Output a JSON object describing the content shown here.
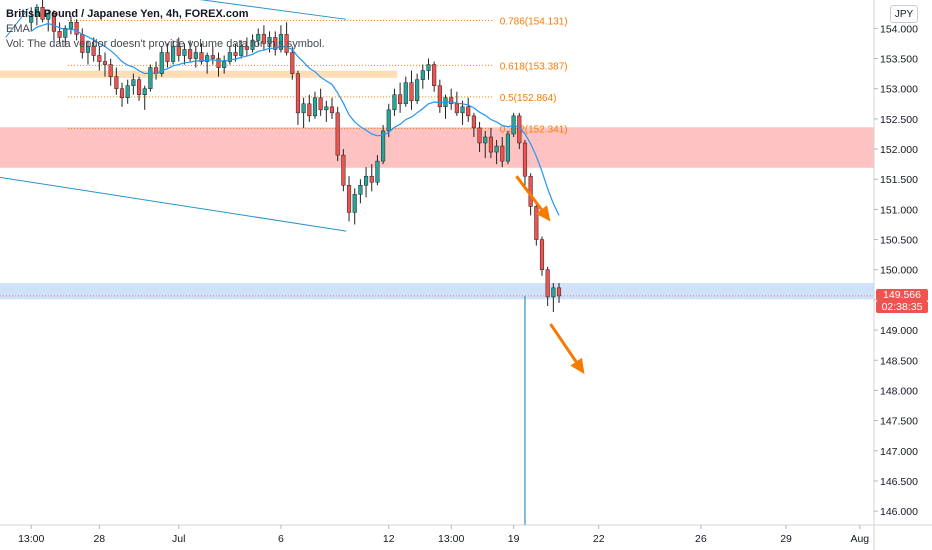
{
  "header": {
    "title": "British Pound / Japanese Yen, 4h, FOREX.com",
    "ema_label": "EMA",
    "vol_note": "Vol: The data vendor doesn't provide volume data for this symbol."
  },
  "currency_button": "JPY",
  "last_price": {
    "value": "149.566",
    "countdown": "02:38:35",
    "color": "#ef5350"
  },
  "colors": {
    "up": "#26a69a",
    "down": "#ef5350",
    "ema": "#2196f3",
    "fib": "#f57c00",
    "red_zone": "#ff9a9a",
    "orange_zone": "#ffd6a5",
    "blue_zone": "#bbd5f7",
    "trendline": "#2a93c9",
    "arrow": "#f57c00"
  },
  "chart_data": {
    "type": "candlestick",
    "title": "British Pound / Japanese Yen, 4h, FOREX.com",
    "y_ticks": [
      146.0,
      146.5,
      147.0,
      147.5,
      148.0,
      148.5,
      149.0,
      149.5,
      150.0,
      150.5,
      151.0,
      151.5,
      152.0,
      152.5,
      153.0,
      153.5,
      154.0
    ],
    "y_tick_labels": [
      "146.000",
      "146.500",
      "147.000",
      "147.500",
      "148.000",
      "148.500",
      "149.000",
      "149.500",
      "150.000",
      "150.500",
      "151.000",
      "151.500",
      "152.000",
      "152.500",
      "153.000",
      "153.500",
      "154.000"
    ],
    "ylim": [
      145.77,
      154.47
    ],
    "x_ticks": [
      {
        "label": "13:00",
        "bar": 0
      },
      {
        "label": "28",
        "bar": 12
      },
      {
        "label": "Jul",
        "bar": 26
      },
      {
        "label": "6",
        "bar": 44
      },
      {
        "label": "12",
        "bar": 63
      },
      {
        "label": "13:00",
        "bar": 74
      },
      {
        "label": "19",
        "bar": 85
      },
      {
        "label": "22",
        "bar": 100
      },
      {
        "label": "26",
        "bar": 118
      },
      {
        "label": "29",
        "bar": 133
      },
      {
        "label": "Aug",
        "bar": 146
      }
    ],
    "bar_range": [
      -5,
      149
    ],
    "fib_levels": [
      {
        "label": "0.786(154.131)",
        "value": 154.131
      },
      {
        "label": "0.618(153.387)",
        "value": 153.387
      },
      {
        "label": "0.5(152.864)",
        "value": 152.864
      },
      {
        "label": "0.382(152.341)",
        "value": 152.341
      }
    ],
    "fib_bar_range": [
      7,
      82
    ],
    "zones": [
      {
        "name": "resistance-red",
        "from": 151.69,
        "to": 152.36,
        "bar_from": -5,
        "bar_to": 149
      },
      {
        "name": "resistance-orange",
        "from": 153.18,
        "to": 153.3,
        "bar_from": -5,
        "bar_to": 65
      },
      {
        "name": "support-blue",
        "from": 149.51,
        "to": 149.78,
        "bar_from": -5,
        "bar_to": 149
      }
    ],
    "trendlines": [
      {
        "from": {
          "bar": 30,
          "value": 154.48
        },
        "to": {
          "bar": 56,
          "value": 154.15
        }
      },
      {
        "from": {
          "bar": -5,
          "value": 151.53
        },
        "to": {
          "bar": 56,
          "value": 150.64
        }
      },
      {
        "from": {
          "bar": -4,
          "value": 153.85
        },
        "to": {
          "bar": 0,
          "value": 154.33
        }
      }
    ],
    "vertical_line": {
      "bar": 87.5,
      "from": 149.566,
      "to": 145.77
    },
    "arrows": [
      {
        "from": {
          "bar": 86,
          "value": 151.55
        },
        "to": {
          "bar": 92,
          "value": 150.8
        }
      },
      {
        "from": {
          "bar": 92,
          "value": 149.1
        },
        "to": {
          "bar": 98,
          "value": 148.27
        }
      }
    ],
    "last_price": 149.566,
    "candles": [
      [
        154.1,
        154.35,
        153.95,
        154.2
      ],
      [
        154.2,
        154.4,
        154.05,
        154.35
      ],
      [
        154.35,
        154.48,
        154.1,
        154.15
      ],
      [
        154.15,
        154.3,
        153.95,
        154.25
      ],
      [
        154.25,
        154.3,
        153.8,
        153.95
      ],
      [
        153.95,
        154.1,
        153.75,
        153.85
      ],
      [
        153.85,
        154.05,
        153.7,
        154.0
      ],
      [
        154.0,
        154.2,
        153.9,
        154.1
      ],
      [
        154.1,
        154.15,
        153.8,
        153.9
      ],
      [
        153.9,
        154.0,
        153.5,
        153.6
      ],
      [
        153.6,
        153.8,
        153.4,
        153.7
      ],
      [
        153.7,
        153.85,
        153.45,
        153.55
      ],
      [
        153.55,
        153.7,
        153.3,
        153.45
      ],
      [
        153.45,
        153.6,
        153.2,
        153.4
      ],
      [
        153.4,
        153.5,
        153.05,
        153.2
      ],
      [
        153.2,
        153.35,
        152.9,
        153.0
      ],
      [
        153.0,
        153.1,
        152.7,
        152.85
      ],
      [
        152.85,
        153.15,
        152.75,
        153.05
      ],
      [
        153.05,
        153.25,
        152.9,
        153.15
      ],
      [
        153.15,
        153.2,
        152.8,
        152.9
      ],
      [
        152.9,
        153.05,
        152.65,
        153.0
      ],
      [
        153.0,
        153.4,
        152.95,
        153.35
      ],
      [
        153.35,
        153.45,
        153.15,
        153.25
      ],
      [
        153.25,
        153.7,
        153.2,
        153.6
      ],
      [
        153.6,
        153.75,
        153.35,
        153.45
      ],
      [
        153.45,
        153.8,
        153.4,
        153.7
      ],
      [
        153.7,
        153.85,
        153.45,
        153.55
      ],
      [
        153.55,
        153.75,
        153.4,
        153.65
      ],
      [
        153.65,
        153.8,
        153.45,
        153.5
      ],
      [
        153.5,
        153.7,
        153.35,
        153.6
      ],
      [
        153.6,
        153.75,
        153.4,
        153.45
      ],
      [
        153.45,
        153.6,
        153.25,
        153.55
      ],
      [
        153.55,
        153.7,
        153.4,
        153.5
      ],
      [
        153.5,
        153.6,
        153.2,
        153.35
      ],
      [
        153.35,
        153.55,
        153.25,
        153.45
      ],
      [
        153.45,
        153.7,
        153.4,
        153.6
      ],
      [
        153.6,
        153.75,
        153.45,
        153.55
      ],
      [
        153.55,
        153.8,
        153.5,
        153.7
      ],
      [
        153.7,
        153.85,
        153.55,
        153.65
      ],
      [
        153.65,
        153.9,
        153.6,
        153.8
      ],
      [
        153.8,
        154.0,
        153.7,
        153.9
      ],
      [
        153.9,
        154.05,
        153.65,
        153.75
      ],
      [
        153.75,
        153.95,
        153.6,
        153.85
      ],
      [
        153.85,
        153.95,
        153.55,
        153.65
      ],
      [
        153.65,
        154.05,
        153.6,
        153.9
      ],
      [
        153.9,
        154.1,
        153.55,
        153.6
      ],
      [
        153.6,
        153.7,
        153.15,
        153.25
      ],
      [
        153.25,
        153.3,
        152.4,
        152.6
      ],
      [
        152.6,
        152.85,
        152.35,
        152.75
      ],
      [
        152.75,
        152.9,
        152.45,
        152.55
      ],
      [
        152.55,
        152.95,
        152.5,
        152.85
      ],
      [
        152.85,
        153.0,
        152.55,
        152.65
      ],
      [
        152.65,
        152.8,
        152.45,
        152.7
      ],
      [
        152.7,
        152.85,
        152.5,
        152.6
      ],
      [
        152.6,
        152.7,
        151.8,
        151.9
      ],
      [
        151.9,
        152.0,
        151.3,
        151.4
      ],
      [
        151.4,
        151.55,
        150.8,
        150.95
      ],
      [
        150.95,
        151.35,
        150.75,
        151.25
      ],
      [
        151.25,
        151.5,
        151.1,
        151.4
      ],
      [
        151.4,
        151.7,
        151.2,
        151.55
      ],
      [
        151.55,
        151.75,
        151.3,
        151.45
      ],
      [
        151.45,
        151.9,
        151.4,
        151.8
      ],
      [
        151.8,
        152.4,
        151.75,
        152.3
      ],
      [
        152.3,
        152.75,
        152.2,
        152.65
      ],
      [
        152.65,
        153.0,
        152.55,
        152.9
      ],
      [
        152.9,
        153.1,
        152.6,
        152.75
      ],
      [
        152.75,
        153.2,
        152.7,
        153.1
      ],
      [
        153.1,
        153.3,
        152.65,
        152.8
      ],
      [
        152.8,
        153.25,
        152.75,
        153.15
      ],
      [
        153.15,
        153.4,
        153.0,
        153.3
      ],
      [
        153.3,
        153.5,
        153.15,
        153.4
      ],
      [
        153.4,
        153.45,
        152.95,
        153.05
      ],
      [
        153.05,
        153.15,
        152.6,
        152.7
      ],
      [
        152.7,
        152.9,
        152.5,
        152.85
      ],
      [
        152.85,
        153.0,
        152.65,
        152.75
      ],
      [
        152.75,
        152.95,
        152.55,
        152.6
      ],
      [
        152.6,
        152.8,
        152.4,
        152.7
      ],
      [
        152.7,
        152.85,
        152.45,
        152.55
      ],
      [
        152.55,
        152.6,
        152.2,
        152.35
      ],
      [
        152.35,
        152.45,
        151.95,
        152.1
      ],
      [
        152.1,
        152.3,
        151.85,
        152.2
      ],
      [
        152.2,
        152.35,
        151.85,
        151.95
      ],
      [
        151.95,
        152.15,
        151.75,
        152.05
      ],
      [
        152.05,
        152.2,
        151.7,
        151.8
      ],
      [
        151.8,
        152.3,
        151.75,
        152.25
      ],
      [
        152.25,
        152.6,
        152.2,
        152.55
      ],
      [
        152.55,
        152.6,
        152.0,
        152.1
      ],
      [
        152.1,
        152.15,
        151.4,
        151.55
      ],
      [
        151.55,
        151.6,
        150.9,
        151.05
      ],
      [
        151.05,
        151.1,
        150.4,
        150.5
      ],
      [
        150.5,
        150.55,
        149.9,
        150.0
      ],
      [
        150.0,
        150.05,
        149.4,
        149.55
      ],
      [
        149.55,
        149.78,
        149.3,
        149.7
      ],
      [
        149.7,
        149.78,
        149.45,
        149.566
      ]
    ],
    "ema": [
      153.95,
      154.02,
      154.05,
      154.08,
      154.05,
      154.01,
      153.98,
      153.99,
      153.96,
      153.9,
      153.86,
      153.81,
      153.75,
      153.7,
      153.63,
      153.55,
      153.45,
      153.39,
      153.36,
      153.3,
      153.25,
      153.26,
      153.25,
      153.3,
      153.33,
      153.38,
      153.4,
      153.43,
      153.44,
      153.46,
      153.46,
      153.47,
      153.48,
      153.46,
      153.46,
      153.48,
      153.49,
      153.52,
      153.54,
      153.57,
      153.62,
      153.64,
      153.67,
      153.67,
      153.7,
      153.69,
      153.65,
      153.53,
      153.44,
      153.34,
      153.28,
      153.19,
      153.13,
      153.07,
      152.93,
      152.76,
      152.57,
      152.45,
      152.37,
      152.31,
      152.25,
      152.22,
      152.23,
      152.28,
      152.36,
      152.41,
      152.49,
      152.53,
      152.6,
      152.67,
      152.75,
      152.78,
      152.77,
      152.78,
      152.78,
      152.76,
      152.75,
      152.73,
      152.68,
      152.61,
      152.56,
      152.49,
      152.45,
      152.39,
      152.37,
      152.39,
      152.36,
      152.25,
      152.09,
      151.88,
      151.63,
      151.34,
      151.1,
      150.9
    ]
  }
}
